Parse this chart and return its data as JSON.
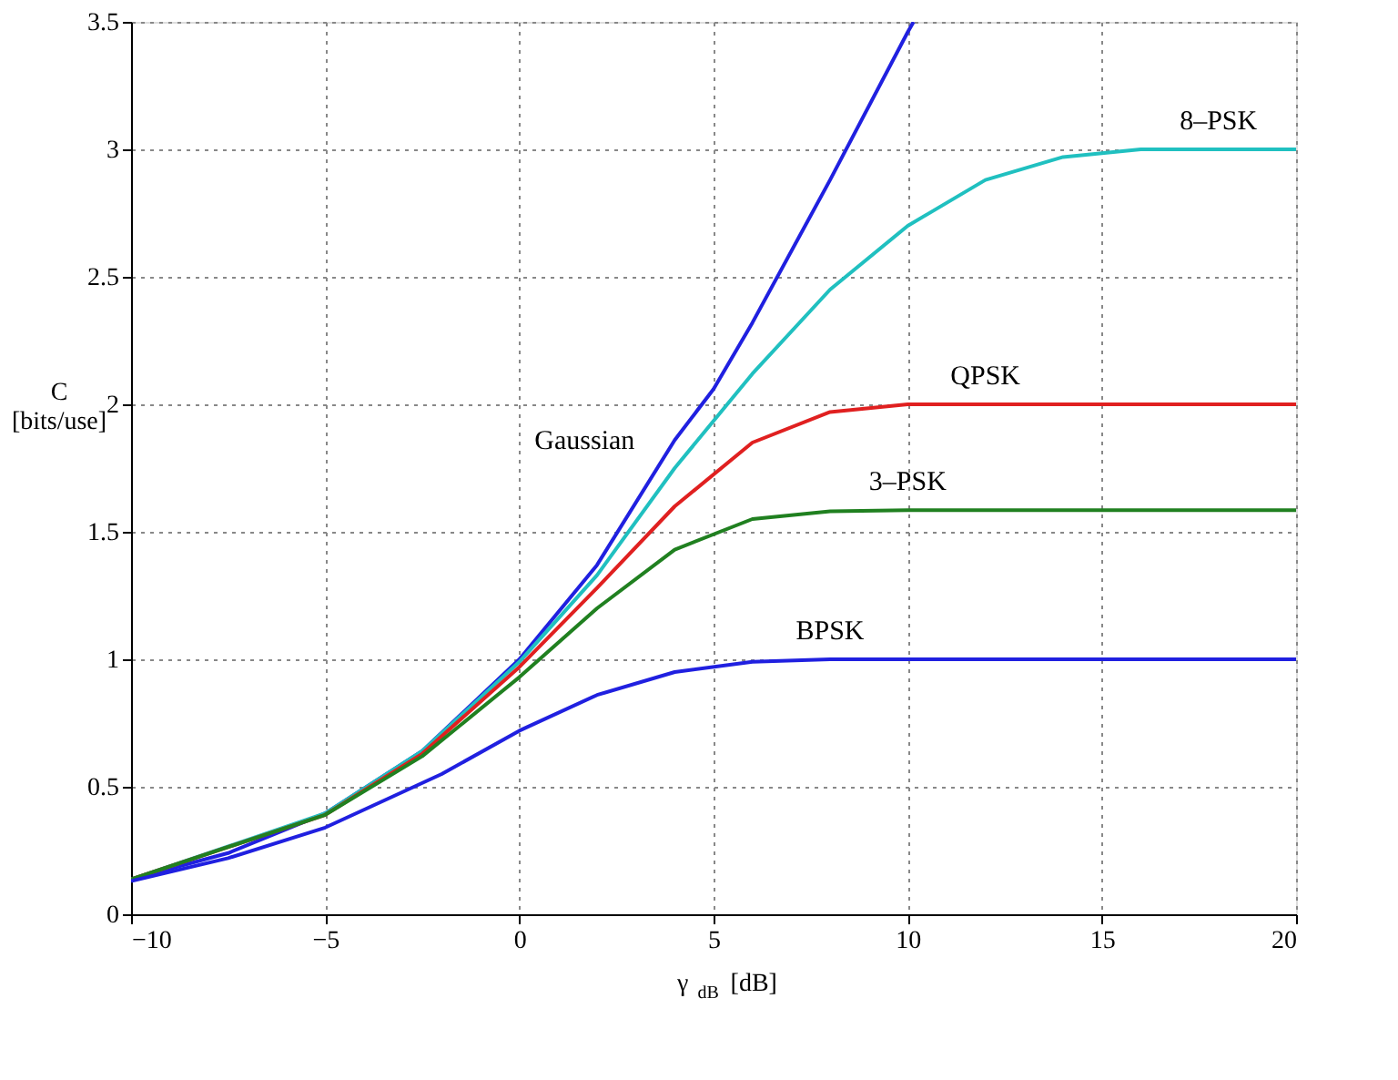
{
  "chart_data": {
    "type": "line",
    "xlabel": "γ$_{dB}$ [dB]",
    "ylabel": "C\n[bits/use]",
    "xlim": [
      -10,
      20
    ],
    "ylim": [
      0,
      3.5
    ],
    "xticks": [
      -10,
      -5,
      0,
      5,
      10,
      15,
      20
    ],
    "yticks": [
      0,
      0.5,
      1,
      1.5,
      2,
      2.5,
      3,
      3.5
    ],
    "grid": true,
    "line_style": "solid",
    "marker": "none",
    "series": [
      {
        "name": "Gaussian",
        "color": "#2020e0",
        "x": [
          -10,
          -7.5,
          -5,
          -2.5,
          0,
          2,
          4,
          5,
          6,
          8,
          10,
          10.15
        ],
        "values": [
          0.137,
          0.24,
          0.396,
          0.64,
          1.0,
          1.37,
          1.86,
          2.06,
          2.32,
          2.88,
          3.46,
          3.5
        ]
      },
      {
        "name": "8–PSK",
        "color": "#20c0c0",
        "x": [
          -10,
          -5,
          -2.5,
          0,
          2,
          4,
          6,
          8,
          10,
          12,
          14,
          16,
          18,
          20
        ],
        "values": [
          0.137,
          0.396,
          0.64,
          0.99,
          1.33,
          1.75,
          2.12,
          2.45,
          2.7,
          2.88,
          2.97,
          3.0,
          3.0,
          3.0
        ]
      },
      {
        "name": "QPSK",
        "color": "#e02020",
        "x": [
          -10,
          -5,
          -2.5,
          0,
          2,
          4,
          6,
          8,
          10,
          12,
          20
        ],
        "values": [
          0.137,
          0.39,
          0.63,
          0.97,
          1.28,
          1.6,
          1.85,
          1.97,
          2.0,
          2.0,
          2.0
        ]
      },
      {
        "name": "3–PSK",
        "color": "#208020",
        "x": [
          -10,
          -5,
          -2.5,
          0,
          2,
          4,
          6,
          8,
          10,
          20
        ],
        "values": [
          0.137,
          0.39,
          0.62,
          0.93,
          1.2,
          1.43,
          1.55,
          1.58,
          1.585,
          1.585
        ]
      },
      {
        "name": "BPSK",
        "color": "#2020e0",
        "x": [
          -10,
          -7.5,
          -5,
          -2,
          0,
          2,
          4,
          6,
          8,
          10,
          20
        ],
        "values": [
          0.13,
          0.22,
          0.34,
          0.55,
          0.72,
          0.86,
          0.95,
          0.99,
          1.0,
          1.0,
          1.0
        ]
      }
    ]
  }
}
